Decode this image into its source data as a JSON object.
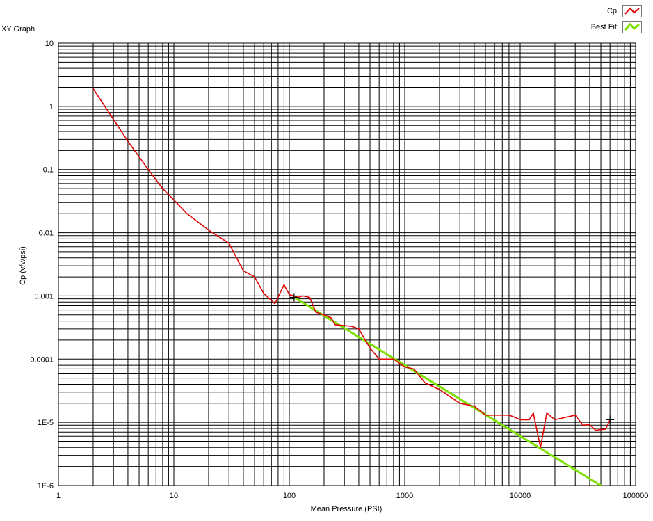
{
  "graph": {
    "title": "XY Graph"
  },
  "chart_data": {
    "type": "line",
    "title": "XY Graph",
    "xlabel": "Mean Pressure (PSI)",
    "ylabel": "Cp (v/v/psi)",
    "x_scale": "log",
    "y_scale": "log",
    "xlim": [
      1,
      100000
    ],
    "ylim": [
      1e-06,
      10
    ],
    "x_ticks": [
      "1",
      "10",
      "100",
      "1000",
      "10000",
      "100000"
    ],
    "y_ticks": [
      "1E-6",
      "1E-5",
      "0.0001",
      "0.001",
      "0.01",
      "0.1",
      "1",
      "10"
    ],
    "grid": true,
    "legend_position": "top-right",
    "series": [
      {
        "name": "Cp",
        "color": "#e00000",
        "x": [
          2,
          4,
          6,
          8,
          10,
          13,
          20,
          30,
          40,
          50,
          60,
          75,
          90,
          100,
          120,
          130,
          150,
          170,
          200,
          230,
          250,
          300,
          350,
          400,
          500,
          600,
          800,
          1000,
          1200,
          1500,
          2000,
          2500,
          3000,
          4000,
          5000,
          6000,
          7000,
          8000,
          9000,
          10000,
          12000,
          13000,
          15000,
          17000,
          20000,
          30000,
          35000,
          40000,
          45000,
          55000,
          60000
        ],
        "y": [
          1.9,
          0.28,
          0.1,
          0.05,
          0.033,
          0.02,
          0.011,
          0.0068,
          0.0025,
          0.002,
          0.0011,
          0.00075,
          0.0015,
          0.00105,
          0.00095,
          0.001,
          0.00095,
          0.00055,
          0.0005,
          0.00045,
          0.00035,
          0.00034,
          0.00033,
          0.0003,
          0.00015,
          0.0001,
          0.0001,
          7.5e-05,
          7e-05,
          4.2e-05,
          3.3e-05,
          2.5e-05,
          2e-05,
          1.8e-05,
          1.3e-05,
          1.3e-05,
          1.3e-05,
          1.3e-05,
          1.2e-05,
          1.1e-05,
          1.1e-05,
          1.4e-05,
          4e-06,
          1.4e-05,
          1.1e-05,
          1.3e-05,
          9e-06,
          9.2e-06,
          7.5e-06,
          7.8e-06,
          1.1e-05
        ]
      },
      {
        "name": "Best Fit",
        "color": "#7fe000",
        "x": [
          110,
          50000
        ],
        "y": [
          0.00095,
          1e-06
        ]
      }
    ]
  }
}
